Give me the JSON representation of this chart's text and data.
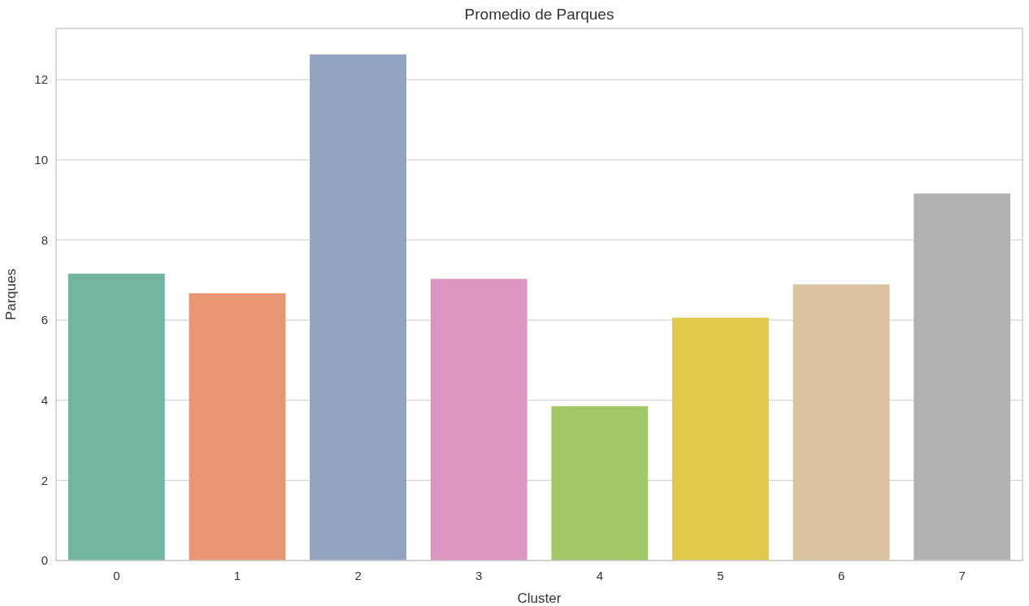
{
  "chart_data": {
    "type": "bar",
    "title": "Promedio de Parques",
    "xlabel": "Cluster",
    "ylabel": "Parques",
    "categories": [
      "0",
      "1",
      "2",
      "3",
      "4",
      "5",
      "6",
      "7"
    ],
    "values": [
      7.16,
      6.67,
      12.63,
      7.03,
      3.85,
      6.06,
      6.89,
      9.16
    ],
    "colors": [
      "#72b6a1",
      "#e99675",
      "#95a3c3",
      "#db96c0",
      "#a2c865",
      "#e3c84a",
      "#dac29e",
      "#b2b2b2"
    ],
    "ylim": [
      0,
      13.28
    ],
    "yticks": [
      0,
      2,
      4,
      6,
      8,
      10,
      12
    ],
    "grid": "y"
  }
}
